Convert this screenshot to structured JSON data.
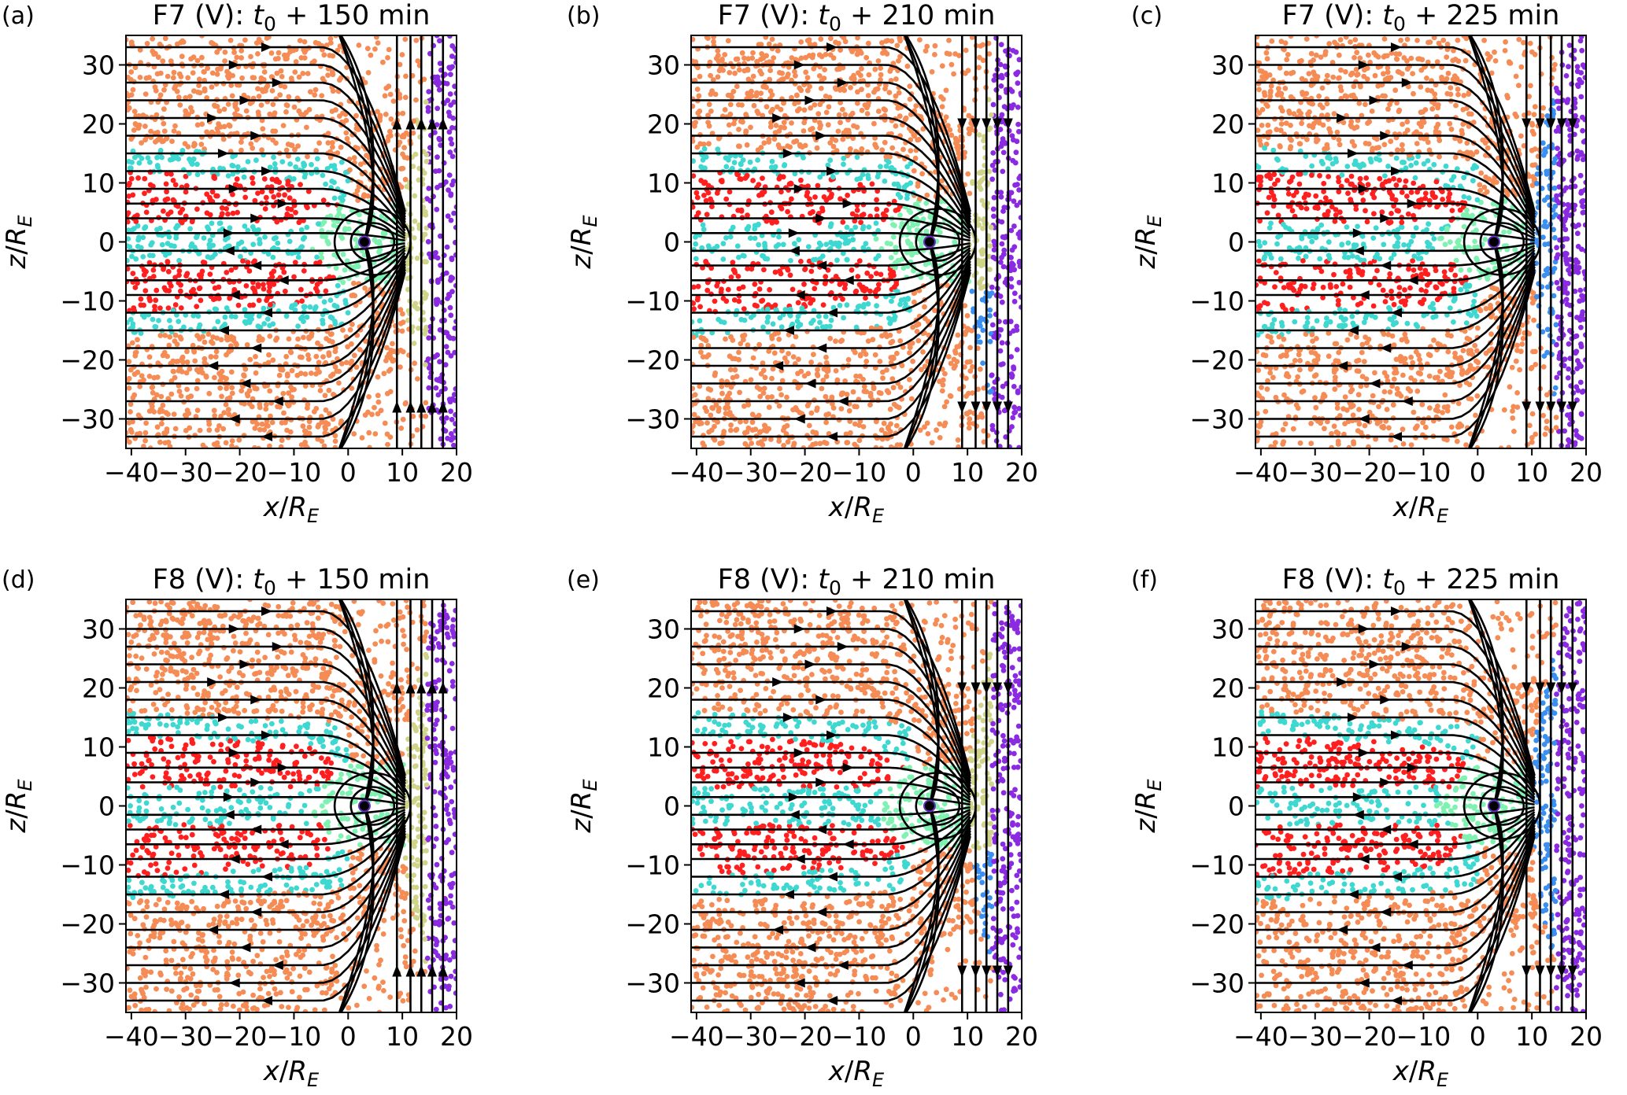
{
  "figure": {
    "panel_count": 6
  },
  "chart_data": [
    {
      "type": "scatter",
      "panel": "(a)",
      "title_prefix": "F7 (V): ",
      "title_var": "t",
      "title_sub": "0",
      "title_suffix": " + 150 min",
      "xlabel_var": "x",
      "ylabel_var": "z",
      "label_denom": "R",
      "label_sub": "E",
      "xlim": [
        -41,
        20
      ],
      "ylim": [
        -35,
        35
      ],
      "xticks": [
        "−40",
        "−30",
        "−20",
        "−10",
        "0",
        "10",
        "20"
      ],
      "xtick_values": [
        -40,
        -30,
        -20,
        -10,
        0,
        10,
        20
      ],
      "yticks": [
        "30",
        "20",
        "10",
        "0",
        "−10",
        "−20",
        "−30"
      ],
      "ytick_values": [
        30,
        20,
        10,
        0,
        -10,
        -20,
        -30
      ],
      "downstream_color": "#cfd48a",
      "streamline_direction": "up",
      "earth_x": 3,
      "colors": {
        "lobe": "#ff1f1f",
        "sheet": "#3ed8d0",
        "inner": "#7ff2b2",
        "sheath": "#f58b55",
        "solar_wind": "#8a2be2"
      }
    },
    {
      "type": "scatter",
      "panel": "(b)",
      "title_prefix": "F7 (V): ",
      "title_var": "t",
      "title_sub": "0",
      "title_suffix": " + 210 min",
      "xlabel_var": "x",
      "ylabel_var": "z",
      "label_denom": "R",
      "label_sub": "E",
      "xlim": [
        -41,
        20
      ],
      "ylim": [
        -35,
        35
      ],
      "xticks": [
        "−40",
        "−30",
        "−20",
        "−10",
        "0",
        "10",
        "20"
      ],
      "xtick_values": [
        -40,
        -30,
        -20,
        -10,
        0,
        10,
        20
      ],
      "yticks": [
        "30",
        "20",
        "10",
        "0",
        "−10",
        "−20",
        "−30"
      ],
      "ytick_values": [
        30,
        20,
        10,
        0,
        -10,
        -20,
        -30
      ],
      "downstream_color": "mixed",
      "streamline_direction": "down",
      "earth_x": 3,
      "colors": {
        "lobe": "#ff1f1f",
        "sheet": "#3ed8d0",
        "inner": "#7ff2b2",
        "sheath": "#f58b55",
        "solar_wind": "#8a2be2",
        "upstream_a": "#cfd48a",
        "upstream_b": "#3b8ff0"
      }
    },
    {
      "type": "scatter",
      "panel": "(c)",
      "title_prefix": "F7 (V): ",
      "title_var": "t",
      "title_sub": "0",
      "title_suffix": " + 225 min",
      "xlabel_var": "x",
      "ylabel_var": "z",
      "label_denom": "R",
      "label_sub": "E",
      "xlim": [
        -41,
        20
      ],
      "ylim": [
        -35,
        35
      ],
      "xticks": [
        "−40",
        "−30",
        "−20",
        "−10",
        "0",
        "10",
        "20"
      ],
      "xtick_values": [
        -40,
        -30,
        -20,
        -10,
        0,
        10,
        20
      ],
      "yticks": [
        "30",
        "20",
        "10",
        "0",
        "−10",
        "−20",
        "−30"
      ],
      "ytick_values": [
        30,
        20,
        10,
        0,
        -10,
        -20,
        -30
      ],
      "downstream_color": "#3b8ff0",
      "streamline_direction": "down",
      "earth_x": 3,
      "colors": {
        "lobe": "#ff1f1f",
        "sheet": "#3ed8d0",
        "inner": "#7ff2b2",
        "sheath": "#f58b55",
        "solar_wind": "#8a2be2"
      }
    },
    {
      "type": "scatter",
      "panel": "(d)",
      "title_prefix": "F8 (V): ",
      "title_var": "t",
      "title_sub": "0",
      "title_suffix": " + 150 min",
      "xlabel_var": "x",
      "ylabel_var": "z",
      "label_denom": "R",
      "label_sub": "E",
      "xlim": [
        -41,
        20
      ],
      "ylim": [
        -35,
        35
      ],
      "xticks": [
        "−40",
        "−30",
        "−20",
        "−10",
        "0",
        "10",
        "20"
      ],
      "xtick_values": [
        -40,
        -30,
        -20,
        -10,
        0,
        10,
        20
      ],
      "yticks": [
        "30",
        "20",
        "10",
        "0",
        "−10",
        "−20",
        "−30"
      ],
      "ytick_values": [
        30,
        20,
        10,
        0,
        -10,
        -20,
        -30
      ],
      "downstream_color": "#cfd48a",
      "streamline_direction": "up",
      "earth_x": 3,
      "colors": {
        "lobe": "#ff1f1f",
        "sheet": "#3ed8d0",
        "inner": "#7ff2b2",
        "sheath": "#f58b55",
        "solar_wind": "#8a2be2"
      }
    },
    {
      "type": "scatter",
      "panel": "(e)",
      "title_prefix": "F8 (V): ",
      "title_var": "t",
      "title_sub": "0",
      "title_suffix": " + 210 min",
      "xlabel_var": "x",
      "ylabel_var": "z",
      "label_denom": "R",
      "label_sub": "E",
      "xlim": [
        -41,
        20
      ],
      "ylim": [
        -35,
        35
      ],
      "xticks": [
        "−40",
        "−30",
        "−20",
        "−10",
        "0",
        "10",
        "20"
      ],
      "xtick_values": [
        -40,
        -30,
        -20,
        -10,
        0,
        10,
        20
      ],
      "yticks": [
        "30",
        "20",
        "10",
        "0",
        "−10",
        "−20",
        "−30"
      ],
      "ytick_values": [
        30,
        20,
        10,
        0,
        -10,
        -20,
        -30
      ],
      "downstream_color": "mixed",
      "streamline_direction": "down",
      "earth_x": 3,
      "colors": {
        "lobe": "#ff1f1f",
        "sheet": "#3ed8d0",
        "inner": "#7ff2b2",
        "sheath": "#f58b55",
        "solar_wind": "#8a2be2",
        "upstream_a": "#cfd48a",
        "upstream_b": "#3b8ff0"
      }
    },
    {
      "type": "scatter",
      "panel": "(f)",
      "title_prefix": "F8 (V): ",
      "title_var": "t",
      "title_sub": "0",
      "title_suffix": " + 225 min",
      "xlabel_var": "x",
      "ylabel_var": "z",
      "label_denom": "R",
      "label_sub": "E",
      "xlim": [
        -41,
        20
      ],
      "ylim": [
        -35,
        35
      ],
      "xticks": [
        "−40",
        "−30",
        "−20",
        "−10",
        "0",
        "10",
        "20"
      ],
      "xtick_values": [
        -40,
        -30,
        -20,
        -10,
        0,
        10,
        20
      ],
      "yticks": [
        "30",
        "20",
        "10",
        "0",
        "−10",
        "−20",
        "−30"
      ],
      "ytick_values": [
        30,
        20,
        10,
        0,
        -10,
        -20,
        -30
      ],
      "downstream_color": "#3b8ff0",
      "streamline_direction": "down",
      "earth_x": 3,
      "colors": {
        "lobe": "#ff1f1f",
        "sheet": "#3ed8d0",
        "inner": "#7ff2b2",
        "sheath": "#f58b55",
        "solar_wind": "#8a2be2"
      }
    }
  ]
}
